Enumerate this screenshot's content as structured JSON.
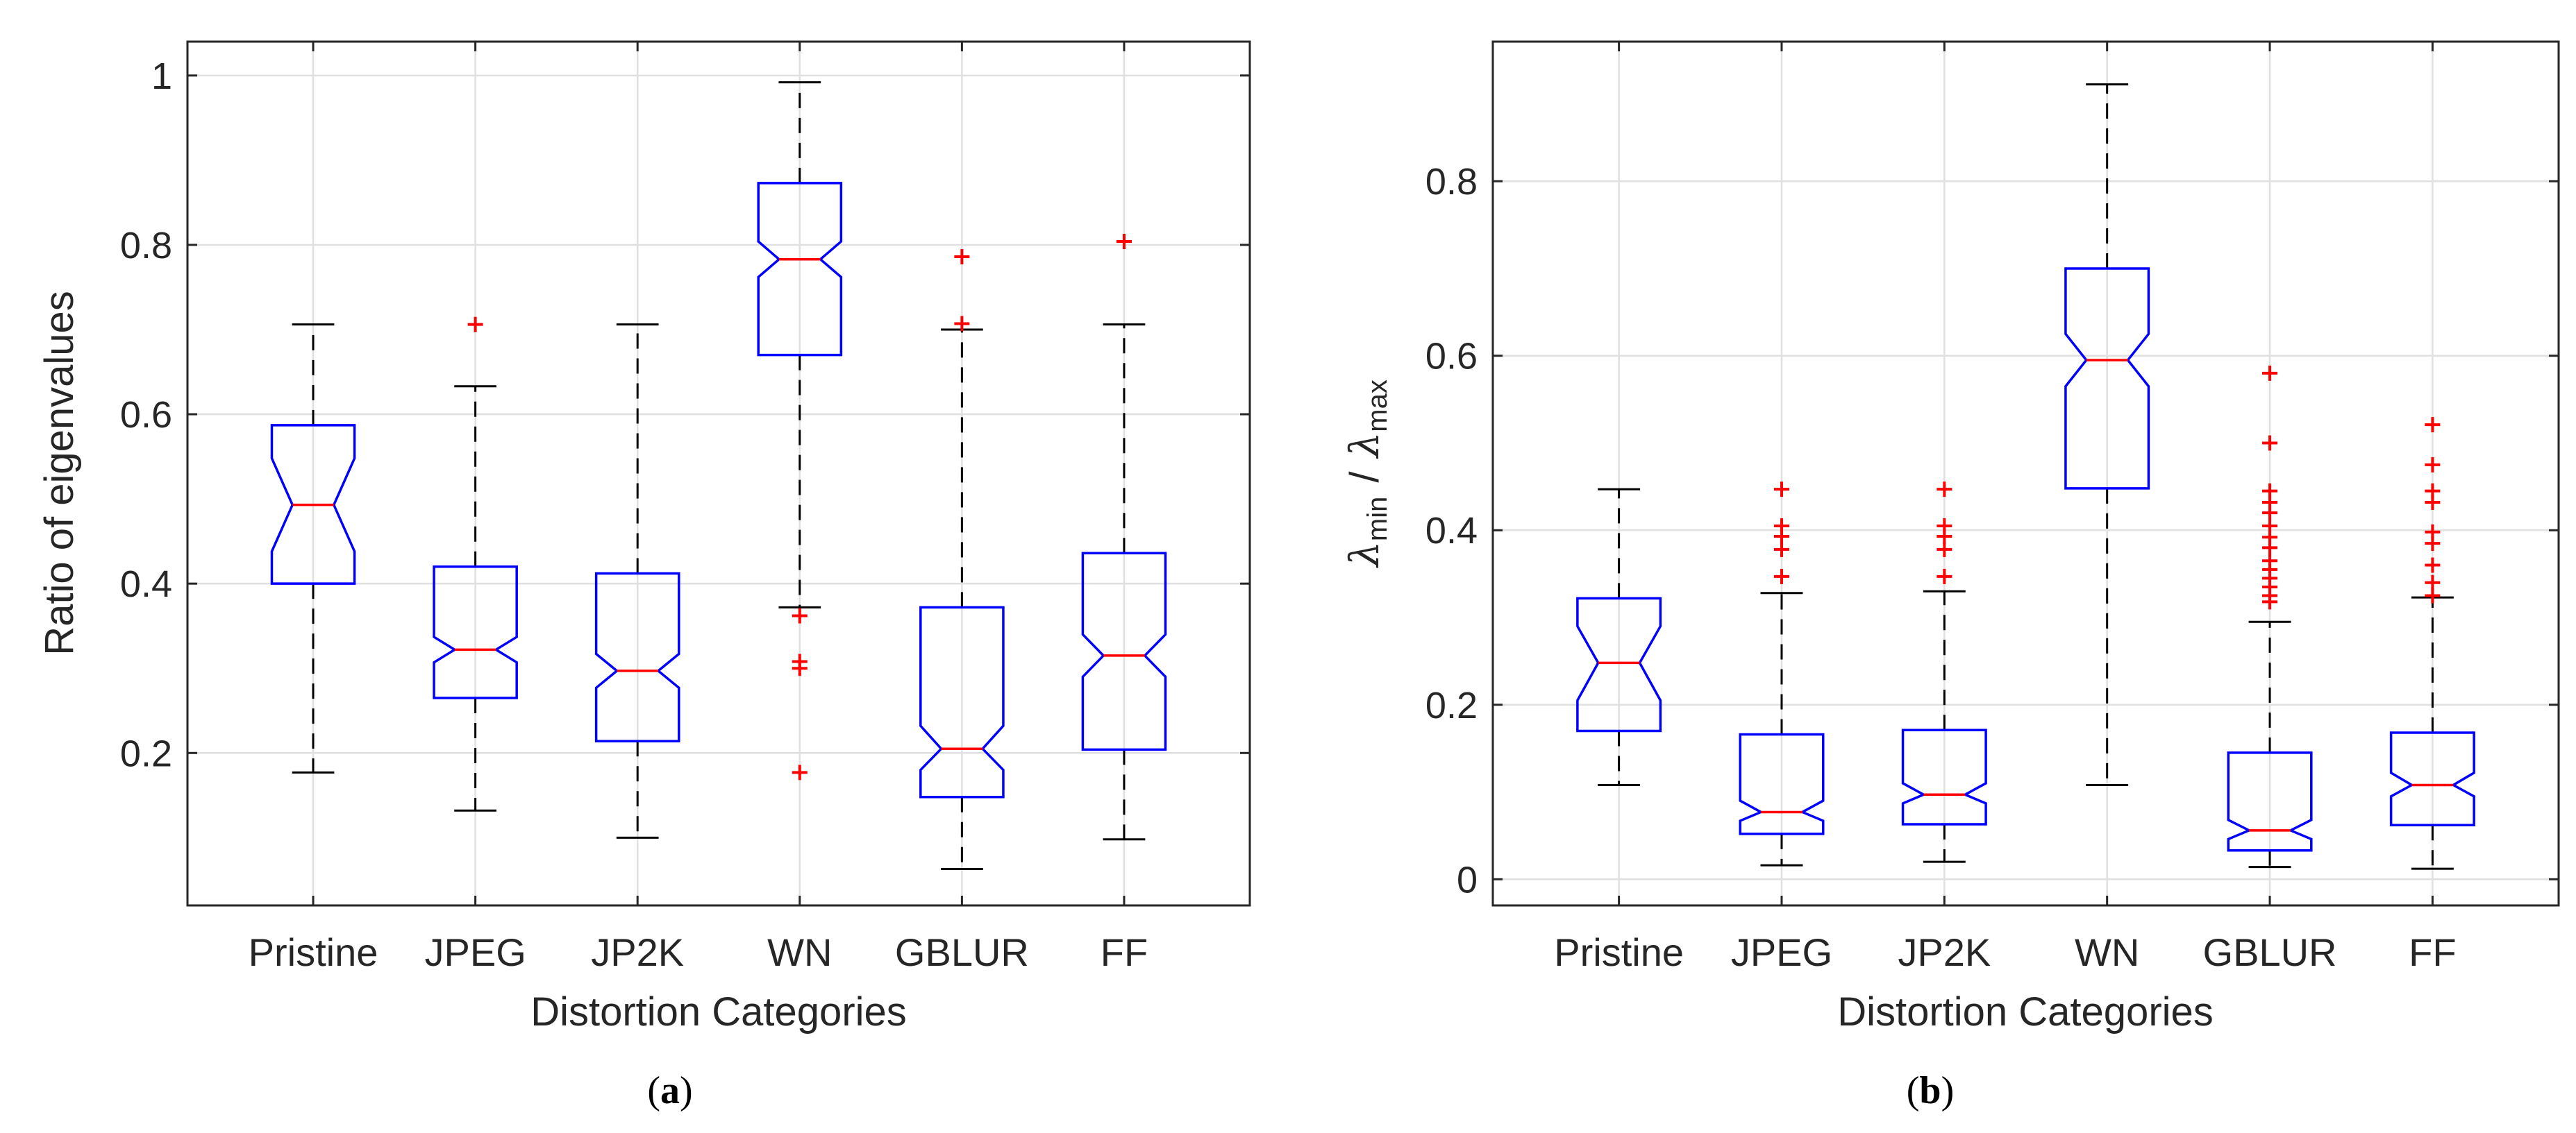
{
  "colors": {
    "box": "#0000ff",
    "median": "#ff0000",
    "outlier": "#ff0000",
    "whisker": "#000000",
    "grid": "#e0e0e0",
    "axis": "#262626"
  },
  "chart_data": [
    {
      "type": "boxplot",
      "notched": true,
      "panel_label": "(a)",
      "panel_letter": "a",
      "title": "",
      "xlabel": "Distortion Categories",
      "ylabel": "Ratio of eigenvalues",
      "categories": [
        "Pristine",
        "JPEG",
        "JP2K",
        "WN",
        "GBLUR",
        "FF"
      ],
      "ylim": [
        0.02,
        1.04
      ],
      "yticks": [
        0.2,
        0.4,
        0.6,
        0.8,
        1
      ],
      "ytick_labels": [
        "0.2",
        "0.4",
        "0.6",
        "0.8",
        "1"
      ],
      "grid": true,
      "boxes": [
        {
          "category": "Pristine",
          "whisker_low": 0.177,
          "q1": 0.4,
          "median": 0.493,
          "q3": 0.587,
          "whisker_high": 0.706,
          "notch_low": 0.438,
          "notch_high": 0.548,
          "outliers": []
        },
        {
          "category": "JPEG",
          "whisker_low": 0.132,
          "q1": 0.265,
          "median": 0.322,
          "q3": 0.42,
          "whisker_high": 0.633,
          "notch_low": 0.307,
          "notch_high": 0.337,
          "outliers": [
            0.706
          ]
        },
        {
          "category": "JP2K",
          "whisker_low": 0.1,
          "q1": 0.214,
          "median": 0.297,
          "q3": 0.412,
          "whisker_high": 0.706,
          "notch_low": 0.277,
          "notch_high": 0.317,
          "outliers": []
        },
        {
          "category": "WN",
          "whisker_low": 0.372,
          "q1": 0.67,
          "median": 0.783,
          "q3": 0.873,
          "whisker_high": 0.992,
          "notch_low": 0.762,
          "notch_high": 0.804,
          "outliers": [
            0.362,
            0.308,
            0.3,
            0.177
          ]
        },
        {
          "category": "GBLUR",
          "whisker_low": 0.063,
          "q1": 0.148,
          "median": 0.205,
          "q3": 0.372,
          "whisker_high": 0.7,
          "notch_low": 0.18,
          "notch_high": 0.232,
          "outliers": [
            0.786,
            0.707
          ]
        },
        {
          "category": "FF",
          "whisker_low": 0.098,
          "q1": 0.204,
          "median": 0.315,
          "q3": 0.436,
          "whisker_high": 0.706,
          "notch_low": 0.29,
          "notch_high": 0.34,
          "outliers": [
            0.804
          ]
        }
      ]
    },
    {
      "type": "boxplot",
      "notched": true,
      "panel_label": "(b)",
      "panel_letter": "b",
      "title": "",
      "xlabel": "Distortion Categories",
      "ylabel": "λmin / λmax",
      "ylabel_parts": {
        "lambda": "λ",
        "min": "min",
        "slash": "/",
        "max": "max"
      },
      "categories": [
        "Pristine",
        "JPEG",
        "JP2K",
        "WN",
        "GBLUR",
        "FF"
      ],
      "ylim": [
        -0.03,
        0.96
      ],
      "yticks": [
        0,
        0.2,
        0.4,
        0.6,
        0.8
      ],
      "ytick_labels": [
        "0",
        "0.2",
        "0.4",
        "0.6",
        "0.8"
      ],
      "grid": true,
      "boxes": [
        {
          "category": "Pristine",
          "whisker_low": 0.108,
          "q1": 0.17,
          "median": 0.248,
          "q3": 0.322,
          "whisker_high": 0.447,
          "notch_low": 0.205,
          "notch_high": 0.29,
          "outliers": []
        },
        {
          "category": "JPEG",
          "whisker_low": 0.016,
          "q1": 0.052,
          "median": 0.077,
          "q3": 0.166,
          "whisker_high": 0.328,
          "notch_low": 0.067,
          "notch_high": 0.09,
          "outliers": [
            0.447,
            0.405,
            0.393,
            0.378,
            0.347
          ]
        },
        {
          "category": "JP2K",
          "whisker_low": 0.02,
          "q1": 0.063,
          "median": 0.097,
          "q3": 0.171,
          "whisker_high": 0.33,
          "notch_low": 0.087,
          "notch_high": 0.11,
          "outliers": [
            0.447,
            0.405,
            0.393,
            0.378,
            0.347
          ]
        },
        {
          "category": "WN",
          "whisker_low": 0.108,
          "q1": 0.448,
          "median": 0.595,
          "q3": 0.7,
          "whisker_high": 0.911,
          "notch_low": 0.565,
          "notch_high": 0.625,
          "outliers": []
        },
        {
          "category": "GBLUR",
          "whisker_low": 0.014,
          "q1": 0.033,
          "median": 0.056,
          "q3": 0.145,
          "whisker_high": 0.295,
          "notch_low": 0.046,
          "notch_high": 0.068,
          "outliers": [
            0.58,
            0.5,
            0.445,
            0.432,
            0.42,
            0.405,
            0.392,
            0.38,
            0.365,
            0.355,
            0.345,
            0.335,
            0.325,
            0.318
          ]
        },
        {
          "category": "FF",
          "whisker_low": 0.012,
          "q1": 0.062,
          "median": 0.108,
          "q3": 0.168,
          "whisker_high": 0.323,
          "notch_low": 0.095,
          "notch_high": 0.122,
          "outliers": [
            0.521,
            0.475,
            0.445,
            0.432,
            0.398,
            0.385,
            0.36,
            0.34,
            0.325
          ]
        }
      ]
    }
  ]
}
